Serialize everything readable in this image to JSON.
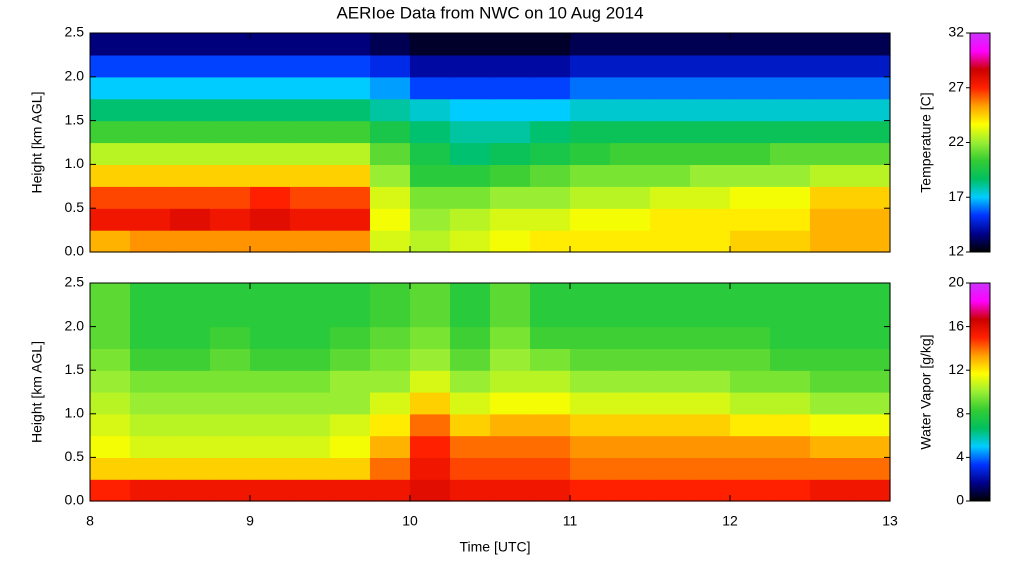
{
  "chart_data": [
    {
      "type": "heatmap",
      "title": "AERIoe Data from NWC on 10 Aug 2014",
      "ylabel": "Height [km AGL]",
      "zlabel": "Temperature [C]",
      "x": [
        8,
        8.25,
        8.5,
        8.75,
        9,
        9.25,
        9.5,
        9.75,
        10,
        10.25,
        10.5,
        10.75,
        11,
        11.25,
        11.5,
        11.75,
        12,
        12.25,
        12.5,
        12.75,
        13
      ],
      "y": [
        0,
        0.25,
        0.5,
        0.75,
        1,
        1.25,
        1.5,
        1.75,
        2,
        2.25,
        2.5
      ],
      "z": [
        [
          25,
          25.5,
          25.5,
          25.5,
          25.5,
          25.5,
          25.5,
          23,
          22.5,
          23,
          23.5,
          24,
          24,
          24,
          24,
          24,
          24.5,
          24.5,
          25,
          25
        ],
        [
          27.5,
          27.5,
          28,
          27.5,
          28,
          27.5,
          27.5,
          23.5,
          22,
          22.5,
          23,
          23,
          23.5,
          23.5,
          24,
          24,
          24,
          24,
          25,
          25
        ],
        [
          26.5,
          26.5,
          26.5,
          26.5,
          27,
          26.5,
          26.5,
          23,
          21.5,
          21.5,
          22,
          22,
          22.5,
          22.5,
          23,
          23,
          23.5,
          23.5,
          24.5,
          24.5
        ],
        [
          24.5,
          24.5,
          24.5,
          24.5,
          24.5,
          24.5,
          24.5,
          22,
          20,
          20,
          20.5,
          21,
          21.5,
          21.5,
          21.5,
          22,
          22,
          22,
          22.5,
          22.5
        ],
        [
          22.5,
          22.5,
          22.5,
          22.5,
          22.5,
          22.5,
          22.5,
          21,
          19.5,
          18.5,
          19,
          19.5,
          20,
          20.5,
          20.5,
          20.5,
          20.5,
          21,
          21,
          21
        ],
        [
          20.5,
          20.5,
          20.5,
          20.5,
          20.5,
          20.5,
          20.5,
          19.5,
          18.5,
          18,
          18,
          18.5,
          19,
          19,
          19,
          19,
          19,
          19,
          19,
          19
        ],
        [
          18.5,
          18.5,
          18.5,
          18.5,
          18.5,
          18.5,
          18.5,
          18,
          17.5,
          17,
          17,
          17,
          17.5,
          17.5,
          17.5,
          17.5,
          17.5,
          17.5,
          17.5,
          17.5
        ],
        [
          17,
          17,
          17,
          17,
          17,
          17,
          17,
          16.5,
          15.5,
          15.5,
          15.5,
          15.5,
          16,
          16,
          16,
          16,
          16,
          16,
          16,
          16
        ],
        [
          15.5,
          15.5,
          15.5,
          15.5,
          15.5,
          15.5,
          15.5,
          15,
          14,
          14,
          14,
          14,
          14.5,
          14.5,
          14.5,
          14.5,
          14.5,
          14.5,
          14.5,
          14.5
        ],
        [
          13.5,
          13.5,
          13.5,
          13.5,
          13.5,
          13.5,
          13.5,
          13,
          12.5,
          12.5,
          12.5,
          12.5,
          13,
          13,
          13,
          13,
          13,
          13,
          13,
          13
        ]
      ],
      "xlim": [
        8,
        13
      ],
      "ylim": [
        0,
        2.5
      ],
      "yticks": [
        {
          "value": 0,
          "label": "0.0"
        },
        0.5,
        {
          "value": 1,
          "label": "1.0"
        },
        1.5,
        {
          "value": 2,
          "label": "2.0"
        },
        2.5
      ],
      "zlim": [
        12,
        32
      ],
      "zticks": [
        12,
        17,
        22,
        27,
        32
      ],
      "colormap": [
        "#000000",
        "#00008b",
        "#0033ff",
        "#00ccff",
        "#00c060",
        "#33cc33",
        "#99ee33",
        "#ffff00",
        "#ffa000",
        "#ff2000",
        "#cc0000",
        "#ff00ff",
        "#cc33ff"
      ]
    },
    {
      "type": "heatmap",
      "ylabel": "Height [km AGL]",
      "xlabel": "Time [UTC]",
      "zlabel": "Water Vapor [g/kg]",
      "x": [
        8,
        8.25,
        8.5,
        8.75,
        9,
        9.25,
        9.5,
        9.75,
        10,
        10.25,
        10.5,
        10.75,
        11,
        11.25,
        11.5,
        11.75,
        12,
        12.25,
        12.5,
        12.75,
        13
      ],
      "y": [
        0,
        0.25,
        0.5,
        0.75,
        1,
        1.25,
        1.5,
        1.75,
        2,
        2.25,
        2.5
      ],
      "z": [
        [
          15,
          15.5,
          15.5,
          15.5,
          15.5,
          15.5,
          15.5,
          15.5,
          16,
          15.5,
          15.5,
          15.5,
          15,
          15,
          15,
          15,
          15,
          15,
          15.5,
          15.5
        ],
        [
          12.5,
          12.5,
          12.5,
          12.5,
          12.5,
          12.5,
          12.5,
          14,
          15.5,
          14.5,
          14.5,
          14.5,
          14,
          14,
          14,
          14,
          14,
          14,
          14,
          14
        ],
        [
          11.5,
          11,
          11,
          11,
          11,
          11,
          11.5,
          13,
          15,
          14,
          14,
          14,
          13.5,
          13.5,
          13.5,
          13.5,
          13.5,
          13.5,
          13,
          13
        ],
        [
          11,
          10.5,
          10.5,
          10.5,
          10.5,
          10.5,
          11,
          12,
          14,
          12.5,
          13,
          13,
          12.5,
          12.5,
          12.5,
          12.5,
          12,
          12,
          11.5,
          11.5
        ],
        [
          10.5,
          10,
          10,
          10,
          10,
          10,
          10,
          11,
          12.5,
          11,
          11.5,
          11.5,
          11,
          11,
          11,
          11,
          10.5,
          10.5,
          10,
          10
        ],
        [
          10,
          9.5,
          9.5,
          9.5,
          9.5,
          9.5,
          10,
          10,
          11,
          10,
          10.5,
          10.5,
          10,
          10,
          10,
          10,
          9.5,
          9.5,
          9,
          9
        ],
        [
          9.5,
          8.5,
          8.5,
          9,
          8.5,
          8.5,
          9,
          9.5,
          10,
          9,
          10,
          9.5,
          9,
          9,
          9,
          9,
          9,
          8.5,
          8.5,
          8.5
        ],
        [
          9,
          8,
          8,
          8.5,
          8,
          8,
          8.5,
          9,
          9.5,
          8.5,
          9.5,
          8.5,
          8.5,
          8.5,
          8.5,
          8.5,
          8.5,
          8,
          8,
          8
        ],
        [
          9,
          8,
          8,
          8,
          8,
          8,
          8,
          8.5,
          9,
          8,
          9,
          8,
          8,
          8,
          8,
          8,
          8,
          8,
          8,
          8
        ],
        [
          9,
          8,
          8,
          8,
          8,
          8,
          8,
          8.5,
          9,
          8,
          9,
          8,
          8,
          8,
          8,
          8,
          8,
          8,
          8,
          8
        ]
      ],
      "xlim": [
        8,
        13
      ],
      "xticks": [
        8,
        9,
        10,
        11,
        12,
        13
      ],
      "ylim": [
        0,
        2.5
      ],
      "yticks": [
        {
          "value": 0,
          "label": "0.0"
        },
        0.5,
        {
          "value": 1,
          "label": "1.0"
        },
        1.5,
        {
          "value": 2,
          "label": "2.0"
        },
        2.5
      ],
      "zlim": [
        0,
        20
      ],
      "zticks": [
        0,
        4,
        8,
        12,
        16,
        20
      ],
      "colormap": [
        "#000000",
        "#00008b",
        "#0033ff",
        "#00ccff",
        "#00c060",
        "#33cc33",
        "#99ee33",
        "#ffff00",
        "#ffa000",
        "#ff2000",
        "#cc0000",
        "#ff00ff",
        "#cc33ff"
      ]
    }
  ]
}
